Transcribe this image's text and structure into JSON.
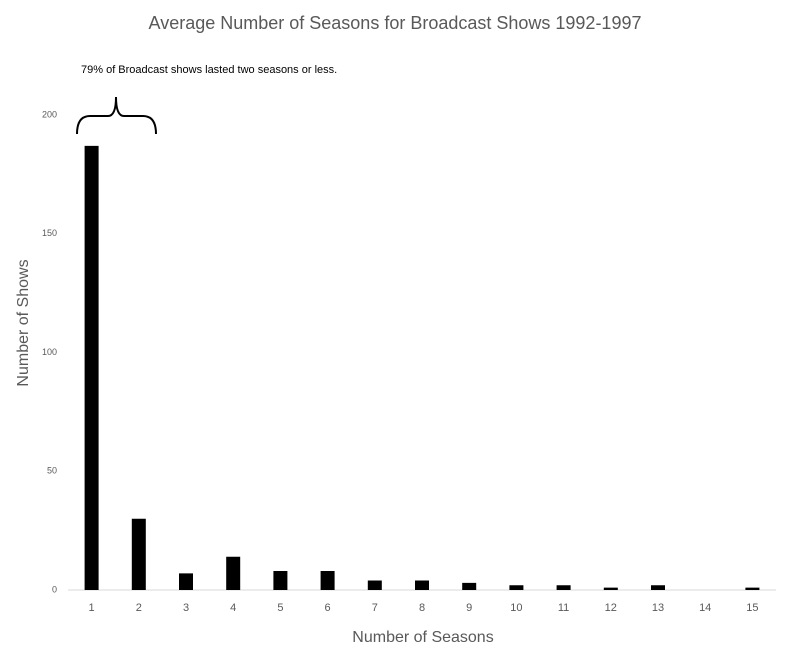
{
  "chart_data": {
    "type": "bar",
    "title": "Average Number of Seasons for Broadcast Shows 1992-1997",
    "annotation": "79% of Broadcast shows lasted two seasons or less.",
    "x_label": "Number of Seasons",
    "y_label": "Number of Shows",
    "categories": [
      1,
      2,
      3,
      4,
      5,
      6,
      7,
      8,
      9,
      10,
      11,
      12,
      13,
      14,
      15
    ],
    "values": [
      187,
      30,
      7,
      14,
      8,
      8,
      4,
      4,
      3,
      2,
      2,
      1,
      2,
      0,
      1
    ],
    "color": "#000000",
    "ylim": [
      0,
      200
    ],
    "yticks": [
      0,
      50,
      100,
      150,
      200
    ],
    "grid": false
  }
}
